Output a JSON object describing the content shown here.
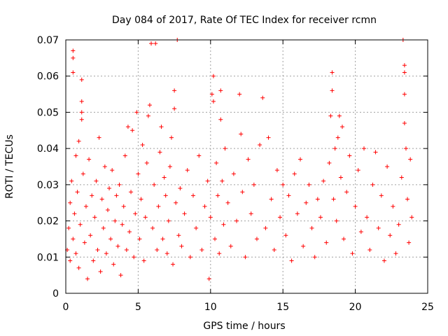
{
  "chart_data": {
    "type": "scatter",
    "title": "Day 084 of 2017, Rate Of TEC Index for receiver rcmn",
    "xlabel": "GPS time / hours",
    "ylabel": "ROTI / TECUs",
    "xlim": [
      0,
      25
    ],
    "ylim": [
      0,
      0.07
    ],
    "xticks": [
      0,
      5,
      10,
      15,
      20,
      25
    ],
    "xtick_labels": [
      "0",
      "5",
      "10",
      "15",
      "20",
      "25"
    ],
    "yticks": [
      0,
      0.01,
      0.02,
      0.03,
      0.04,
      0.05,
      0.06,
      0.07
    ],
    "ytick_labels": [
      "0",
      "0.01",
      "0.02",
      "0.03",
      "0.04",
      "0.05",
      "0.06",
      "0.07"
    ],
    "grid": true,
    "marker": "plus",
    "color": "#ff0000",
    "series": [
      {
        "points": [
          [
            0.1,
            0.012
          ],
          [
            0.2,
            0.018
          ],
          [
            0.3,
            0.025
          ],
          [
            0.3,
            0.009
          ],
          [
            0.4,
            0.031
          ],
          [
            0.5,
            0.015
          ],
          [
            0.5,
            0.067
          ],
          [
            0.5,
            0.065
          ],
          [
            0.5,
            0.061
          ],
          [
            0.6,
            0.022
          ],
          [
            0.7,
            0.038
          ],
          [
            0.7,
            0.011
          ],
          [
            0.8,
            0.028
          ],
          [
            0.9,
            0.042
          ],
          [
            0.9,
            0.007
          ],
          [
            1.0,
            0.019
          ],
          [
            1.1,
            0.059
          ],
          [
            1.1,
            0.053
          ],
          [
            1.1,
            0.05
          ],
          [
            1.1,
            0.048
          ],
          [
            1.2,
            0.033
          ],
          [
            1.3,
            0.014
          ],
          [
            1.4,
            0.024
          ],
          [
            1.5,
            0.004
          ],
          [
            1.6,
            0.037
          ],
          [
            1.7,
            0.016
          ],
          [
            1.8,
            0.027
          ],
          [
            1.9,
            0.009
          ],
          [
            2.0,
            0.021
          ],
          [
            2.1,
            0.031
          ],
          [
            2.2,
            0.012
          ],
          [
            2.3,
            0.043
          ],
          [
            2.4,
            0.006
          ],
          [
            2.5,
            0.026
          ],
          [
            2.6,
            0.018
          ],
          [
            2.7,
            0.035
          ],
          [
            2.8,
            0.011
          ],
          [
            2.9,
            0.023
          ],
          [
            3.0,
            0.029
          ],
          [
            3.1,
            0.015
          ],
          [
            3.2,
            0.034
          ],
          [
            3.3,
            0.008
          ],
          [
            3.4,
            0.02
          ],
          [
            3.5,
            0.027
          ],
          [
            3.6,
            0.013
          ],
          [
            3.7,
            0.03
          ],
          [
            3.8,
            0.005
          ],
          [
            3.9,
            0.019
          ],
          [
            4.0,
            0.024
          ],
          [
            4.1,
            0.038
          ],
          [
            4.2,
            0.012
          ],
          [
            4.3,
            0.046
          ],
          [
            4.4,
            0.017
          ],
          [
            4.5,
            0.028
          ],
          [
            4.6,
            0.045
          ],
          [
            4.7,
            0.01
          ],
          [
            4.8,
            0.022
          ],
          [
            4.9,
            0.05
          ],
          [
            5.0,
            0.033
          ],
          [
            5.1,
            0.015
          ],
          [
            5.2,
            0.026
          ],
          [
            5.3,
            0.041
          ],
          [
            5.4,
            0.009
          ],
          [
            5.5,
            0.021
          ],
          [
            5.6,
            0.036
          ],
          [
            5.7,
            0.049
          ],
          [
            5.8,
            0.052
          ],
          [
            5.9,
            0.069
          ],
          [
            6.0,
            0.018
          ],
          [
            6.1,
            0.03
          ],
          [
            6.2,
            0.069
          ],
          [
            6.3,
            0.012
          ],
          [
            6.4,
            0.024
          ],
          [
            6.5,
            0.039
          ],
          [
            6.6,
            0.046
          ],
          [
            6.7,
            0.015
          ],
          [
            6.8,
            0.032
          ],
          [
            6.9,
            0.027
          ],
          [
            7.0,
            0.011
          ],
          [
            7.1,
            0.02
          ],
          [
            7.2,
            0.035
          ],
          [
            7.3,
            0.043
          ],
          [
            7.4,
            0.008
          ],
          [
            7.5,
            0.051
          ],
          [
            7.5,
            0.056
          ],
          [
            7.6,
            0.025
          ],
          [
            7.7,
            0.07
          ],
          [
            7.8,
            0.016
          ],
          [
            7.9,
            0.029
          ],
          [
            8.0,
            0.013
          ],
          [
            8.2,
            0.022
          ],
          [
            8.4,
            0.034
          ],
          [
            8.6,
            0.01
          ],
          [
            8.8,
            0.027
          ],
          [
            9.0,
            0.018
          ],
          [
            9.2,
            0.038
          ],
          [
            9.4,
            0.012
          ],
          [
            9.6,
            0.024
          ],
          [
            9.8,
            0.031
          ],
          [
            9.9,
            0.004
          ],
          [
            10.0,
            0.021
          ],
          [
            10.1,
            0.055
          ],
          [
            10.2,
            0.06
          ],
          [
            10.2,
            0.053
          ],
          [
            10.3,
            0.015
          ],
          [
            10.4,
            0.036
          ],
          [
            10.5,
            0.027
          ],
          [
            10.6,
            0.011
          ],
          [
            10.7,
            0.056
          ],
          [
            10.7,
            0.048
          ],
          [
            10.8,
            0.031
          ],
          [
            10.9,
            0.019
          ],
          [
            11.0,
            0.04
          ],
          [
            11.2,
            0.025
          ],
          [
            11.4,
            0.013
          ],
          [
            11.6,
            0.033
          ],
          [
            11.8,
            0.02
          ],
          [
            12.0,
            0.055
          ],
          [
            12.1,
            0.044
          ],
          [
            12.2,
            0.028
          ],
          [
            12.4,
            0.01
          ],
          [
            12.6,
            0.037
          ],
          [
            12.8,
            0.022
          ],
          [
            13.0,
            0.03
          ],
          [
            13.2,
            0.015
          ],
          [
            13.4,
            0.041
          ],
          [
            13.6,
            0.054
          ],
          [
            13.8,
            0.018
          ],
          [
            14.0,
            0.043
          ],
          [
            14.2,
            0.026
          ],
          [
            14.4,
            0.012
          ],
          [
            14.6,
            0.034
          ],
          [
            14.8,
            0.021
          ],
          [
            15.0,
            0.03
          ],
          [
            15.2,
            0.016
          ],
          [
            15.4,
            0.027
          ],
          [
            15.6,
            0.009
          ],
          [
            15.8,
            0.033
          ],
          [
            16.0,
            0.022
          ],
          [
            16.2,
            0.037
          ],
          [
            16.4,
            0.013
          ],
          [
            16.6,
            0.025
          ],
          [
            16.8,
            0.03
          ],
          [
            17.0,
            0.018
          ],
          [
            17.2,
            0.01
          ],
          [
            17.4,
            0.026
          ],
          [
            17.6,
            0.021
          ],
          [
            17.8,
            0.031
          ],
          [
            18.0,
            0.014
          ],
          [
            18.2,
            0.036
          ],
          [
            18.3,
            0.049
          ],
          [
            18.4,
            0.061
          ],
          [
            18.4,
            0.056
          ],
          [
            18.5,
            0.026
          ],
          [
            18.6,
            0.04
          ],
          [
            18.7,
            0.02
          ],
          [
            18.8,
            0.043
          ],
          [
            18.9,
            0.049
          ],
          [
            19.0,
            0.032
          ],
          [
            19.1,
            0.046
          ],
          [
            19.2,
            0.015
          ],
          [
            19.4,
            0.028
          ],
          [
            19.6,
            0.038
          ],
          [
            19.8,
            0.011
          ],
          [
            20.0,
            0.024
          ],
          [
            20.2,
            0.034
          ],
          [
            20.4,
            0.017
          ],
          [
            20.6,
            0.04
          ],
          [
            20.8,
            0.021
          ],
          [
            21.0,
            0.012
          ],
          [
            21.2,
            0.03
          ],
          [
            21.4,
            0.039
          ],
          [
            21.6,
            0.018
          ],
          [
            21.8,
            0.027
          ],
          [
            22.0,
            0.009
          ],
          [
            22.2,
            0.035
          ],
          [
            22.4,
            0.016
          ],
          [
            22.6,
            0.024
          ],
          [
            22.8,
            0.011
          ],
          [
            23.0,
            0.019
          ],
          [
            23.2,
            0.032
          ],
          [
            23.3,
            0.07
          ],
          [
            23.4,
            0.063
          ],
          [
            23.4,
            0.061
          ],
          [
            23.4,
            0.055
          ],
          [
            23.4,
            0.047
          ],
          [
            23.5,
            0.04
          ],
          [
            23.6,
            0.026
          ],
          [
            23.7,
            0.014
          ],
          [
            23.8,
            0.037
          ],
          [
            23.9,
            0.021
          ]
        ]
      }
    ]
  }
}
